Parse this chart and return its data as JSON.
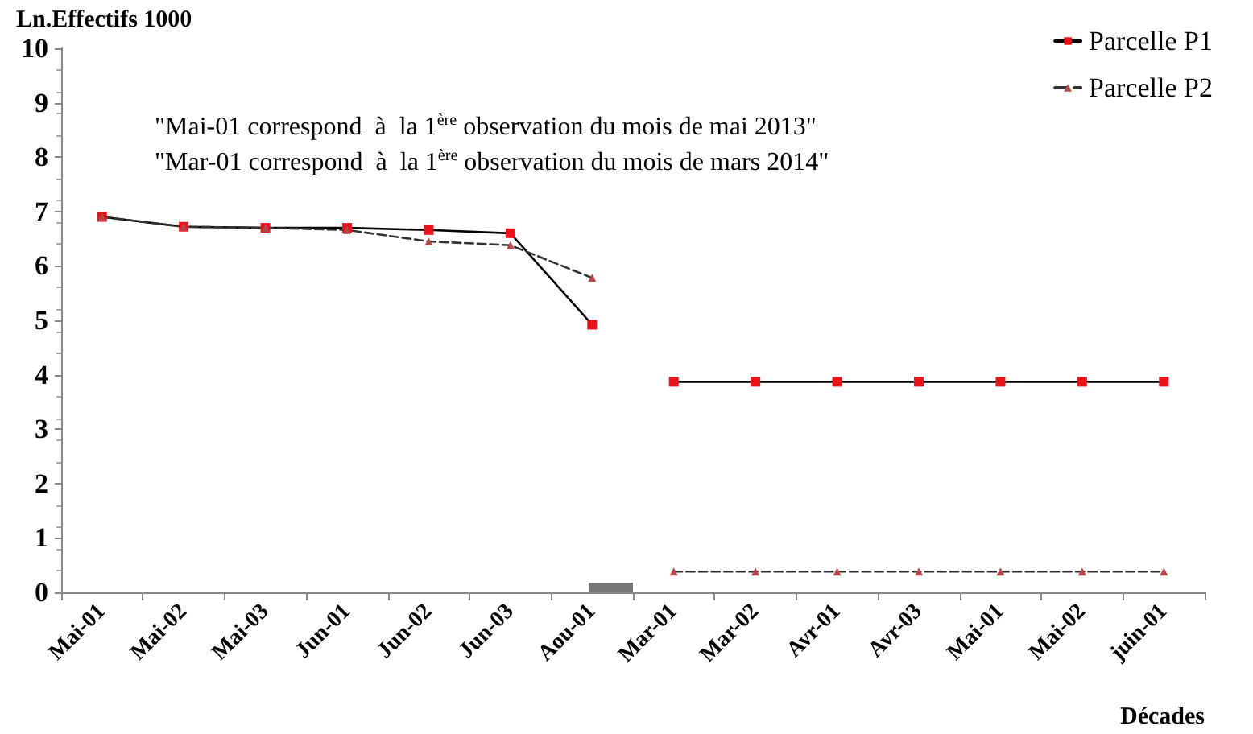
{
  "chart_data": {
    "type": "line",
    "ylabel": "Ln.Effectifs 1000",
    "xlabel": "Décades",
    "categories": [
      "Mai-01",
      "Mai-02",
      "Mai-03",
      "Jun-01",
      "Jun-02",
      "Jun-03",
      "Aou-01",
      "Mar-01",
      "Mar-02",
      "Avr-01",
      "Avr-03",
      "Mai-01",
      "Mai-02",
      "juin-01"
    ],
    "series": [
      {
        "name": "Parcelle P1",
        "color": "#e8141b",
        "marker": "square",
        "line_style": "solid",
        "values": [
          6.9,
          6.72,
          6.7,
          6.7,
          6.66,
          6.6,
          4.92,
          null,
          null,
          null,
          null,
          null,
          null,
          null
        ]
      },
      {
        "color": "#e8141b",
        "marker": "square",
        "line_style": "solid",
        "values": [
          null,
          null,
          null,
          null,
          null,
          null,
          null,
          3.87,
          3.87,
          3.87,
          3.87,
          3.87,
          3.87,
          3.87
        ]
      },
      {
        "name": "Parcelle P2",
        "color": "#b5474b",
        "marker": "triangle",
        "line_style": "dashed",
        "values": [
          6.9,
          6.72,
          6.7,
          6.66,
          6.45,
          6.38,
          5.78,
          null,
          null,
          null,
          null,
          null,
          null,
          null
        ]
      },
      {
        "color": "#b5474b",
        "marker": "triangle",
        "line_style": "dashed",
        "values": [
          null,
          null,
          null,
          null,
          null,
          null,
          null,
          0.38,
          0.38,
          0.38,
          0.38,
          0.38,
          0.38,
          0.38
        ]
      }
    ],
    "ylim": [
      0,
      10
    ],
    "yticks": [
      0,
      1,
      2,
      3,
      4,
      5,
      6,
      7,
      8,
      9,
      10
    ],
    "grid": false,
    "legend": "top right",
    "annotations": [
      "\"Mai-01 correspond  à  la 1$^{ère}$ observation du mois de mai 2013\"",
      "\"Mar-01 correspond  à  la 1$^{ère}$ observation du mois de mars 2014\""
    ]
  }
}
